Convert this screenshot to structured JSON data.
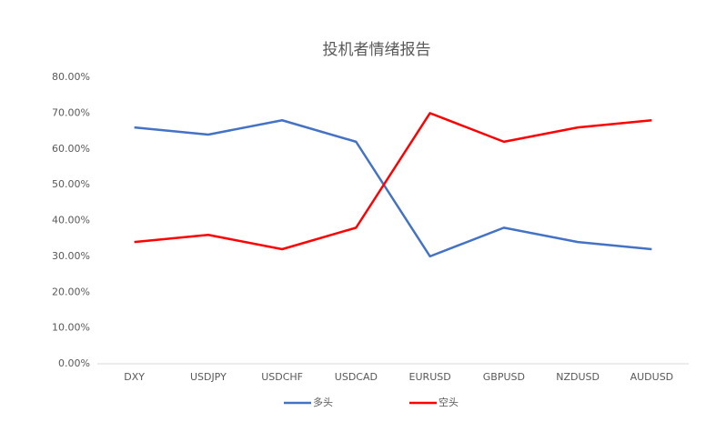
{
  "chart_data": {
    "type": "line",
    "title": "投机者情绪报告",
    "categories": [
      "DXY",
      "USDJPY",
      "USDCHF",
      "USDCAD",
      "EURUSD",
      "GBPUSD",
      "NZDUSD",
      "AUDUSD"
    ],
    "series": [
      {
        "name": "多头",
        "color": "#4472c4",
        "values": [
          66,
          64,
          68,
          62,
          30,
          38,
          34,
          32
        ]
      },
      {
        "name": "空头",
        "color": "#ff0000",
        "values": [
          34,
          36,
          32,
          38,
          70,
          62,
          66,
          68
        ]
      }
    ],
    "ylim": [
      0,
      80
    ],
    "yticks": [
      {
        "value": 0,
        "label": "0.00%"
      },
      {
        "value": 10,
        "label": "10.00%"
      },
      {
        "value": 20,
        "label": "20.00%"
      },
      {
        "value": 30,
        "label": "30.00%"
      },
      {
        "value": 40,
        "label": "40.00%"
      },
      {
        "value": 50,
        "label": "50.00%"
      },
      {
        "value": 60,
        "label": "60.00%"
      },
      {
        "value": 70,
        "label": "70.00%"
      },
      {
        "value": 80,
        "label": "80.00%"
      }
    ],
    "grid": false,
    "legend": "bottom"
  }
}
